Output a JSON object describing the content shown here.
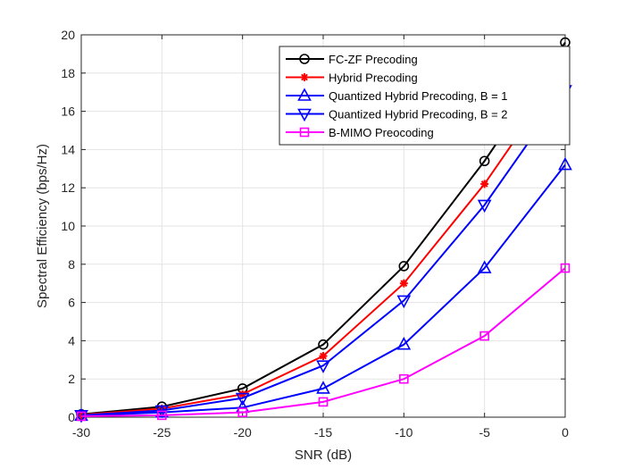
{
  "chart_data": {
    "type": "line",
    "title": "",
    "xlabel": "SNR (dB)",
    "ylabel": "Spectral Efficiency (bps/Hz)",
    "xlim": [
      -30,
      0
    ],
    "ylim": [
      0,
      20
    ],
    "grid": true,
    "legend_position": "top-right",
    "x": [
      -30,
      -25,
      -20,
      -15,
      -10,
      -5,
      0
    ],
    "x_ticks": [
      "-30",
      "-25",
      "-20",
      "-15",
      "-10",
      "-5",
      "0"
    ],
    "y_ticks": [
      "0",
      "2",
      "4",
      "6",
      "8",
      "10",
      "12",
      "14",
      "16",
      "18",
      "20"
    ],
    "series": [
      {
        "name": "FC-ZF Precoding",
        "color": "#000000",
        "marker": "circle",
        "values": [
          0.15,
          0.55,
          1.5,
          3.8,
          7.9,
          13.4,
          19.6
        ]
      },
      {
        "name": "Hybrid Precoding",
        "color": "#ff0000",
        "marker": "asterisk",
        "values": [
          0.12,
          0.45,
          1.2,
          3.2,
          7.0,
          12.2,
          18.3
        ]
      },
      {
        "name": "Quantized Hybrid Precoding, B = 1",
        "color": "#0000ff",
        "marker": "triangle-up",
        "values": [
          0.08,
          0.25,
          0.5,
          1.5,
          3.8,
          7.8,
          13.2
        ]
      },
      {
        "name": "Quantized Hybrid Precoding, B = 2",
        "color": "#0000ff",
        "marker": "triangle-down",
        "values": [
          0.1,
          0.35,
          1.0,
          2.7,
          6.1,
          11.1,
          17.1
        ]
      },
      {
        "name": "B-MIMO Preocoding",
        "color": "#ff00ff",
        "marker": "square",
        "values": [
          0.05,
          0.1,
          0.25,
          0.8,
          2.0,
          4.25,
          7.8
        ]
      }
    ]
  }
}
